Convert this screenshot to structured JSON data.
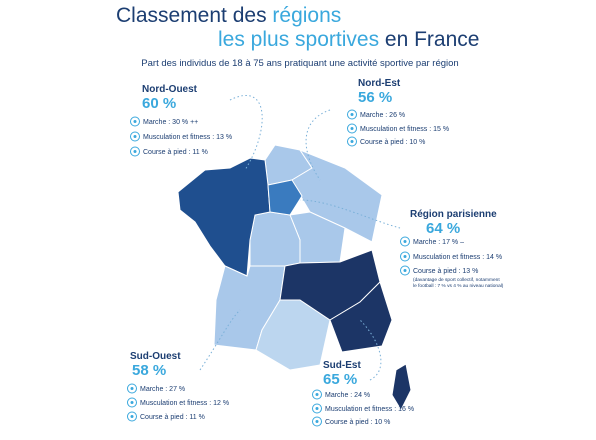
{
  "header": {
    "title_line1": [
      "Classement des ",
      "régions"
    ],
    "title_line2": [
      "les plus sportives",
      " en France"
    ],
    "subtitle": "Part des individus de 18 à 75 ans pratiquant une activité sportive par région"
  },
  "regions": [
    {
      "name": "Nord-Ouest",
      "share": "60 %",
      "items": [
        "Marche : 30 % ++",
        "Musculation et fitness : 13 %",
        "Course à pied : 11 %"
      ]
    },
    {
      "name": "Nord-Est",
      "share": "56 %",
      "items": [
        "Marche : 26 %",
        "Musculation et fitness : 15 %",
        "Course à pied : 10 %"
      ]
    },
    {
      "name": "Région parisienne",
      "share": "64 %",
      "items": [
        "Marche : 17 % –",
        "Musculation et fitness : 14 %",
        "Course à pied : 13 %"
      ],
      "note": [
        "(davantage de sport collectif, notamment",
        "le football : 7 % vs 4 % au niveau national)"
      ]
    },
    {
      "name": "Sud-Ouest",
      "share": "58 %",
      "items": [
        "Marche : 27 %",
        "Musculation et fitness : 12 %",
        "Course à pied : 11 %"
      ]
    },
    {
      "name": "Sud-Est",
      "share": "65 %",
      "items": [
        "Marche : 24 %",
        "Musculation et fitness : 16 %",
        "Course à pied : 10 %"
      ]
    }
  ]
}
